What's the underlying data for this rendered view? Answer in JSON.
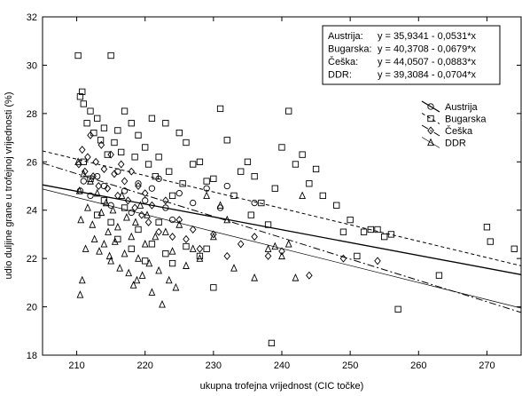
{
  "chart_data": {
    "type": "scatter",
    "title": "",
    "xlabel": "ukupna trofejna vrijednost (CIC točke)",
    "ylabel": "udio duljine grane u trofejnoj vrijednosti (%)",
    "xlim": [
      205,
      275
    ],
    "ylim": [
      18,
      32
    ],
    "xticks": [
      "210",
      "220",
      "230",
      "240",
      "250",
      "260",
      "270"
    ],
    "yticks": [
      "18",
      "20",
      "22",
      "24",
      "26",
      "28",
      "30",
      "32"
    ],
    "grid": false,
    "legend_position": "right",
    "equations": [
      {
        "label": "Austrija:",
        "formula": "y = 35,9341 - 0,0531*x"
      },
      {
        "label": "Bugarska:",
        "formula": "y = 40,3708 - 0,0679*x"
      },
      {
        "label": "Češka:",
        "formula": "y = 44,0507 - 0,0883*x"
      },
      {
        "label": "DDR:",
        "formula": "y = 39,3084 - 0,0704*x"
      }
    ],
    "series": [
      {
        "name": "Austrija",
        "marker": "circle",
        "line_style": "solid",
        "intercept": 35.9341,
        "slope": -0.0531,
        "points": [
          [
            210.5,
            24.8
          ],
          [
            211,
            25.2
          ],
          [
            212,
            24.6
          ],
          [
            213,
            25.4
          ],
          [
            214,
            25.0
          ],
          [
            215,
            24.2
          ],
          [
            216,
            25.6
          ],
          [
            217,
            24.8
          ],
          [
            218,
            23.9
          ],
          [
            219,
            25.1
          ],
          [
            220,
            24.4
          ],
          [
            221,
            24.9
          ],
          [
            222,
            25.3
          ],
          [
            223,
            24.1
          ],
          [
            224,
            23.6
          ],
          [
            225,
            24.7
          ],
          [
            227,
            24.3
          ],
          [
            229,
            24.9
          ],
          [
            231,
            24.1
          ],
          [
            232,
            25.0
          ],
          [
            236,
            24.3
          ]
        ]
      },
      {
        "name": "Bugarska",
        "marker": "square",
        "line_style": "dashed",
        "intercept": 40.3708,
        "slope": -0.0679,
        "points": [
          [
            210.2,
            30.4
          ],
          [
            210.5,
            28.7
          ],
          [
            210.8,
            28.9
          ],
          [
            211,
            28.4
          ],
          [
            211.5,
            27.6
          ],
          [
            212,
            28.1
          ],
          [
            212.5,
            27.2
          ],
          [
            213,
            27.8
          ],
          [
            213.5,
            26.9
          ],
          [
            214,
            27.4
          ],
          [
            214.5,
            26.3
          ],
          [
            215,
            30.4
          ],
          [
            215.5,
            26.8
          ],
          [
            216,
            27.3
          ],
          [
            216.5,
            26.4
          ],
          [
            217,
            28.1
          ],
          [
            218,
            27.6
          ],
          [
            218.5,
            26.2
          ],
          [
            219,
            27.1
          ],
          [
            220,
            26.6
          ],
          [
            220.5,
            25.9
          ],
          [
            221,
            27.8
          ],
          [
            221.5,
            25.4
          ],
          [
            222,
            26.2
          ],
          [
            223,
            27.6
          ],
          [
            223.5,
            25.6
          ],
          [
            224,
            24.6
          ],
          [
            225,
            27.2
          ],
          [
            225.5,
            25.1
          ],
          [
            226,
            26.8
          ],
          [
            227,
            25.9
          ],
          [
            228,
            26.0
          ],
          [
            229,
            25.2
          ],
          [
            230,
            25.3
          ],
          [
            231,
            28.2
          ],
          [
            232,
            26.9
          ],
          [
            233,
            24.6
          ],
          [
            234,
            25.6
          ],
          [
            235,
            26.0
          ],
          [
            235.5,
            23.8
          ],
          [
            236,
            25.4
          ],
          [
            237,
            24.3
          ],
          [
            238,
            23.4
          ],
          [
            238.5,
            18.5
          ],
          [
            239,
            24.9
          ],
          [
            240,
            26.6
          ],
          [
            241,
            28.1
          ],
          [
            242,
            25.9
          ],
          [
            243,
            26.3
          ],
          [
            244,
            25.1
          ],
          [
            245,
            25.7
          ],
          [
            246,
            24.6
          ],
          [
            248,
            24.2
          ],
          [
            249,
            23.1
          ],
          [
            250,
            23.6
          ],
          [
            251,
            22.1
          ],
          [
            252,
            23.1
          ],
          [
            253,
            23.2
          ],
          [
            254,
            23.2
          ],
          [
            255,
            22.9
          ],
          [
            256,
            23.0
          ],
          [
            257,
            19.9
          ],
          [
            263,
            21.3
          ],
          [
            270,
            23.3
          ],
          [
            270.5,
            22.7
          ],
          [
            274,
            22.4
          ],
          [
            211,
            26.0
          ],
          [
            212,
            25.3
          ],
          [
            213,
            23.8
          ],
          [
            214,
            24.4
          ],
          [
            215,
            23.5
          ],
          [
            216,
            22.8
          ],
          [
            217,
            24.1
          ],
          [
            218,
            22.4
          ],
          [
            219,
            23.2
          ],
          [
            220,
            21.9
          ],
          [
            221,
            22.6
          ],
          [
            222,
            23.5
          ],
          [
            223,
            22.2
          ],
          [
            224,
            21.8
          ],
          [
            226,
            22.5
          ],
          [
            228,
            22.1
          ],
          [
            229,
            22.4
          ],
          [
            230,
            20.8
          ]
        ]
      },
      {
        "name": "Češka",
        "marker": "diamond",
        "line_style": "dash-dot",
        "intercept": 44.0507,
        "slope": -0.0883,
        "points": [
          [
            210.3,
            25.9
          ],
          [
            210.8,
            26.5
          ],
          [
            211.2,
            25.6
          ],
          [
            211.6,
            26.2
          ],
          [
            212,
            27.1
          ],
          [
            212.4,
            25.4
          ],
          [
            212.8,
            26.0
          ],
          [
            213.2,
            25.0
          ],
          [
            213.6,
            26.7
          ],
          [
            214,
            25.7
          ],
          [
            214.5,
            24.9
          ],
          [
            215,
            26.3
          ],
          [
            215.5,
            25.5
          ],
          [
            216,
            24.6
          ],
          [
            216.5,
            25.9
          ],
          [
            217,
            25.2
          ],
          [
            217.5,
            24.4
          ],
          [
            218,
            25.6
          ],
          [
            218.5,
            24.1
          ],
          [
            219,
            25.0
          ],
          [
            219.5,
            23.8
          ],
          [
            220,
            24.7
          ],
          [
            220.5,
            23.5
          ],
          [
            221,
            24.2
          ],
          [
            222,
            23.1
          ],
          [
            223,
            24.4
          ],
          [
            224,
            22.9
          ],
          [
            225,
            23.6
          ],
          [
            226,
            22.8
          ],
          [
            227,
            23.2
          ],
          [
            228,
            22.4
          ],
          [
            230,
            23.0
          ],
          [
            232,
            22.1
          ],
          [
            234,
            22.6
          ],
          [
            236,
            22.9
          ],
          [
            238,
            22.1
          ],
          [
            240,
            22.3
          ],
          [
            244,
            21.3
          ],
          [
            249,
            22.0
          ],
          [
            254,
            21.9
          ]
        ]
      },
      {
        "name": "DDR",
        "marker": "triangle",
        "line_style": "solid-thin",
        "intercept": 39.3084,
        "slope": -0.0704,
        "points": [
          [
            210.2,
            26.0
          ],
          [
            210.4,
            24.8
          ],
          [
            210.6,
            23.6
          ],
          [
            210.8,
            21.1
          ],
          [
            211,
            25.5
          ],
          [
            211.3,
            22.4
          ],
          [
            211.6,
            24.1
          ],
          [
            212,
            25.2
          ],
          [
            212.3,
            23.4
          ],
          [
            212.6,
            22.8
          ],
          [
            213,
            24.7
          ],
          [
            213.3,
            22.3
          ],
          [
            213.6,
            23.9
          ],
          [
            214,
            22.6
          ],
          [
            214.3,
            24.3
          ],
          [
            214.6,
            23.1
          ],
          [
            215,
            21.9
          ],
          [
            215.3,
            24.0
          ],
          [
            215.6,
            22.7
          ],
          [
            216,
            23.3
          ],
          [
            216.3,
            21.6
          ],
          [
            216.6,
            24.6
          ],
          [
            217,
            22.2
          ],
          [
            217.3,
            23.7
          ],
          [
            217.6,
            21.4
          ],
          [
            218,
            22.9
          ],
          [
            218.3,
            20.9
          ],
          [
            218.6,
            23.5
          ],
          [
            219,
            22.0
          ],
          [
            219.3,
            24.2
          ],
          [
            219.6,
            21.3
          ],
          [
            220,
            22.6
          ],
          [
            220.3,
            23.8
          ],
          [
            220.6,
            21.8
          ],
          [
            221,
            20.6
          ],
          [
            221.5,
            22.9
          ],
          [
            222,
            21.5
          ],
          [
            222.5,
            20.1
          ],
          [
            223,
            23.1
          ],
          [
            223.5,
            21.1
          ],
          [
            224,
            22.3
          ],
          [
            224.5,
            20.8
          ],
          [
            225,
            23.4
          ],
          [
            226,
            21.7
          ],
          [
            227,
            22.4
          ],
          [
            228,
            22.0
          ],
          [
            229,
            24.6
          ],
          [
            230,
            22.9
          ],
          [
            231,
            24.2
          ],
          [
            232,
            23.6
          ],
          [
            233,
            21.6
          ],
          [
            236,
            21.2
          ],
          [
            238,
            22.4
          ],
          [
            239,
            22.5
          ],
          [
            240,
            22.1
          ],
          [
            241,
            22.6
          ],
          [
            242,
            21.2
          ],
          [
            243,
            24.6
          ],
          [
            210.5,
            20.5
          ],
          [
            214.8,
            22.1
          ],
          [
            218.8,
            21.1
          ]
        ]
      }
    ]
  }
}
